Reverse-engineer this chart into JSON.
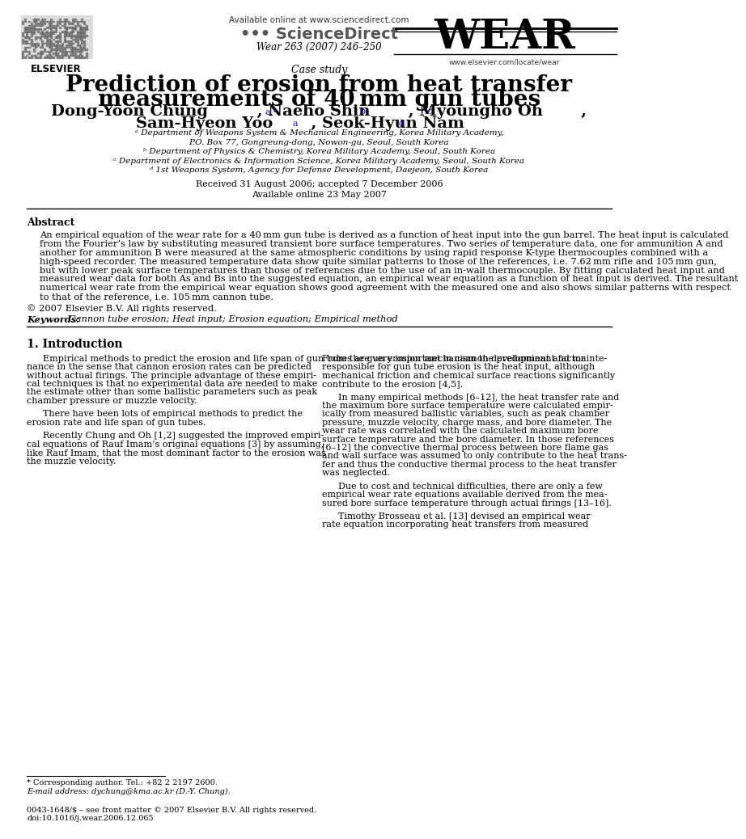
{
  "bg_color": "#ffffff",
  "header": {
    "available_online": "Available online at www.sciencedirect.com",
    "sciencedirect_text": "ScienceDirect",
    "journal_name": "WEAR",
    "journal_url": "www.elsevier.com/locate/wear",
    "journal_ref": "Wear 263 (2007) 246–250",
    "elsevier_text": "ELSEVIER"
  },
  "title_section": {
    "case_study": "Case study",
    "title_line1": "Prediction of erosion from heat transfer",
    "title_line2": "measurements of 40 mm gun tubes",
    "affil_a": "ᵃ Department of Weapons System & Mechanical Engineering, Korea Military Academy,",
    "affil_a2": "P.O. Box 77, Gongreung-dong, Nowon-gu, Seoul, South Korea",
    "affil_b": "ᵇ Department of Physics & Chemistry, Korea Military Academy, Seoul, South Korea",
    "affil_c": "ᶜ Department of Electronics & Information Science, Korea Military Academy, Seoul, South Korea",
    "affil_d": "ᵈ 1st Weapons System, Agency for Defense Development, Daejeon, South Korea",
    "received": "Received 31 August 2006; accepted 7 December 2006",
    "available_online2": "Available online 23 May 2007"
  },
  "abstract": {
    "label": "Abstract",
    "lines": [
      "An empirical equation of the wear rate for a 40 mm gun tube is derived as a function of heat input into the gun barrel. The heat input is calculated",
      "from the Fourier’s law by substituting measured transient bore surface temperatures. Two series of temperature data, one for ammunition A and",
      "another for ammunition B were measured at the same atmospheric conditions by using rapid response K-type thermocouples combined with a",
      "high-speed recorder. The measured temperature data show quite similar patterns to those of the references, i.e. 7.62 mm rifle and 105 mm gun,",
      "but with lower peak surface temperatures than those of references due to the use of an in-wall thermocouple. By fitting calculated heat input and",
      "measured wear data for both As and Bs into the suggested equation, an empirical wear equation as a function of heat input is derived. The resultant",
      "numerical wear rate from the empirical wear equation shows good agreement with the measured one and also shows similar patterns with respect",
      "to that of the reference, i.e. 105 mm cannon tube."
    ],
    "copyright": "© 2007 Elsevier B.V. All rights reserved.",
    "keywords_label": "Keywords:",
    "keywords": "Cannon tube erosion; Heat input; Erosion equation; Empirical method"
  },
  "intro": {
    "label": "1. Introduction",
    "col1": [
      [
        "indent",
        "Empirical methods to predict the erosion and life span of gun tubes are very important in cannon development and mainte-\nnance in the sense that cannon erosion rates can be predicted\nwithout actual firings. The principle advantage of these empiri-\ncal techniques is that no experimental data are needed to make\nthe estimate other than some ballistic parameters such as peak\nchamber pressure or muzzle velocity."
      ],
      [
        "indent",
        "There have been lots of empirical methods to predict the\nerosion rate and life span of gun tubes."
      ],
      [
        "indent",
        "Recently Chung and Oh [1,2] suggested the improved empiri-\ncal equations of Rauf Imam’s original equations [3] by assuming,\nlike Rauf Imam, that the most dominant factor to the erosion was\nthe muzzle velocity."
      ]
    ],
    "col2": [
      [
        "noindent",
        "From the gun erosion mechanism the predominant factor\nresponsible for gun tube erosion is the heat input, although\nmechanical friction and chemical surface reactions significantly\ncontribute to the erosion [4,5]."
      ],
      [
        "indent",
        "In many empirical methods [6–12], the heat transfer rate and\nthe maximum bore surface temperature were calculated empir-\nically from measured ballistic variables, such as peak chamber\npressure, muzzle velocity, charge mass, and bore diameter. The\nwear rate was correlated with the calculated maximum bore\nsurface temperature and the bore diameter. In those references\n[6–12] the convective thermal process between bore flame gas\nand wall surface was assumed to only contribute to the heat trans-\nfer and thus the conductive thermal process to the heat transfer\nwas neglected."
      ],
      [
        "indent",
        "Due to cost and technical difficulties, there are only a few\nempirical wear rate equations available derived from the mea-\nsured bore surface temperature through actual firings [13–16]."
      ],
      [
        "indent",
        "Timothy Brosseau et al. [13] devised an empirical wear\nrate equation incorporating heat transfers from measured"
      ]
    ]
  },
  "footer": {
    "footnote1": "* Corresponding author. Tel.: +82 2 2197 2600.",
    "footnote2": "E-mail address: dychung@kma.ac.kr (D.-Y. Chung).",
    "footnote3": "0043-1648/$ – see front matter © 2007 Elsevier B.V. All rights reserved.",
    "footnote4": "doi:10.1016/j.wear.2006.12.065"
  },
  "colors": {
    "text_black": "#000000",
    "text_blue": "#1a0dab",
    "text_gray": "#555555"
  }
}
